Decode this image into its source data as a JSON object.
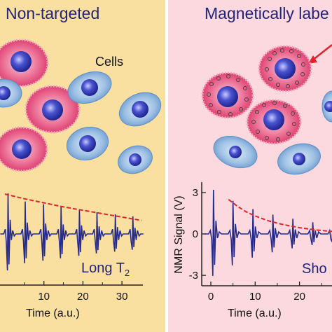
{
  "left_panel": {
    "title": "Non-targeted",
    "cells_label": "Cells",
    "relaxation_label": "Long T",
    "relaxation_sub": "2",
    "x_axis_label": "Time (a.u.)",
    "x_ticks": [
      "10",
      "20",
      "30"
    ],
    "pulse_times": [
      0.8,
      5.2,
      9.9,
      14.4,
      19.1,
      23.6,
      28.3,
      32.8
    ],
    "decay_envelope": [
      [
        0,
        2.95
      ],
      [
        5,
        2.6
      ],
      [
        10,
        2.3
      ],
      [
        15,
        2.0
      ],
      [
        20,
        1.75
      ],
      [
        25,
        1.5
      ],
      [
        30,
        1.25
      ],
      [
        35,
        1.0
      ]
    ]
  },
  "right_panel": {
    "title": "Magnetically labe",
    "relaxation_label": "Sho",
    "y_axis_label": "NMR Signal (V)",
    "y_ticks": [
      "3",
      "0",
      "-3"
    ],
    "x_axis_label": "Time (a.u.)",
    "x_ticks": [
      "0",
      "10",
      "20"
    ],
    "pulse_times": [
      0.6,
      5.0,
      9.5,
      14.0,
      18.5,
      23.0,
      27.5
    ],
    "decay_envelope": [
      [
        4,
        2.5
      ],
      [
        6,
        2.0
      ],
      [
        8,
        1.6
      ],
      [
        10,
        1.3
      ],
      [
        13,
        0.95
      ],
      [
        16,
        0.7
      ],
      [
        20,
        0.45
      ],
      [
        24,
        0.28
      ],
      [
        28,
        0.17
      ]
    ]
  },
  "colors": {
    "left_bg": "#f9dfa0",
    "right_bg": "#fbd9de",
    "title": "#23237a",
    "signal": "#262a8c",
    "envelope": "#e0242e",
    "tumor_cell": "#e84f7f",
    "normal_cell": "#89b2dc",
    "nucleus": "#3d46bb"
  }
}
